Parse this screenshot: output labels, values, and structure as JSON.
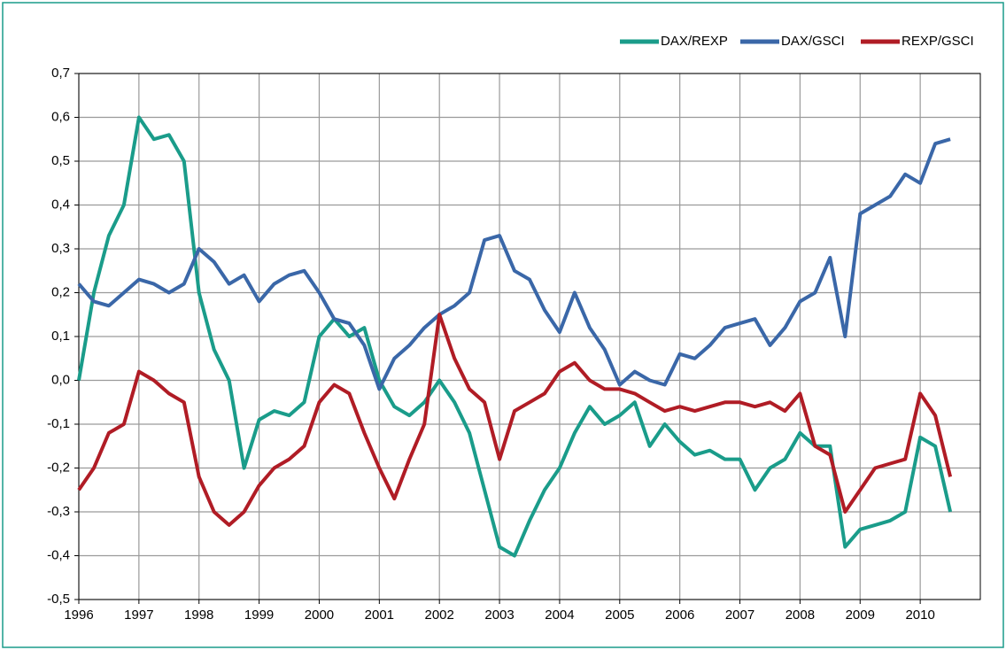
{
  "chart_data": {
    "type": "line",
    "x": [
      1996,
      1996.25,
      1996.5,
      1996.75,
      1997,
      1997.25,
      1997.5,
      1997.75,
      1998,
      1998.25,
      1998.5,
      1998.75,
      1999,
      1999.25,
      1999.5,
      1999.75,
      2000,
      2000.25,
      2000.5,
      2000.75,
      2001,
      2001.25,
      2001.5,
      2001.75,
      2002,
      2002.25,
      2002.5,
      2002.75,
      2003,
      2003.25,
      2003.5,
      2003.75,
      2004,
      2004.25,
      2004.5,
      2004.75,
      2005,
      2005.25,
      2005.5,
      2005.75,
      2006,
      2006.25,
      2006.5,
      2006.75,
      2007,
      2007.25,
      2007.5,
      2007.75,
      2008,
      2008.25,
      2008.5,
      2008.75,
      2009,
      2009.25,
      2009.5,
      2009.75,
      2010,
      2010.25,
      2010.5
    ],
    "series": [
      {
        "name": "DAX/REXP",
        "color": "#1a9c8a",
        "values": [
          0.0,
          0.2,
          0.33,
          0.4,
          0.6,
          0.55,
          0.56,
          0.5,
          0.2,
          0.07,
          0.0,
          -0.2,
          -0.09,
          -0.07,
          -0.08,
          -0.05,
          0.1,
          0.14,
          0.1,
          0.12,
          0.0,
          -0.06,
          -0.08,
          -0.05,
          0.0,
          -0.05,
          -0.12,
          -0.25,
          -0.38,
          -0.4,
          -0.32,
          -0.25,
          -0.2,
          -0.12,
          -0.06,
          -0.1,
          -0.08,
          -0.05,
          -0.15,
          -0.1,
          -0.14,
          -0.17,
          -0.16,
          -0.18,
          -0.18,
          -0.25,
          -0.2,
          -0.18,
          -0.12,
          -0.15,
          -0.15,
          -0.38,
          -0.34,
          -0.33,
          -0.32,
          -0.3,
          -0.13,
          -0.15,
          -0.3
        ]
      },
      {
        "name": "DAX/GSCI",
        "color": "#3a67a8",
        "values": [
          0.22,
          0.18,
          0.17,
          0.2,
          0.23,
          0.22,
          0.2,
          0.22,
          0.3,
          0.27,
          0.22,
          0.24,
          0.18,
          0.22,
          0.24,
          0.25,
          0.2,
          0.14,
          0.13,
          0.08,
          -0.02,
          0.05,
          0.08,
          0.12,
          0.15,
          0.17,
          0.2,
          0.32,
          0.33,
          0.25,
          0.23,
          0.16,
          0.11,
          0.2,
          0.12,
          0.07,
          -0.01,
          0.02,
          0.0,
          -0.01,
          0.06,
          0.05,
          0.08,
          0.12,
          0.13,
          0.14,
          0.08,
          0.12,
          0.18,
          0.2,
          0.28,
          0.1,
          0.38,
          0.4,
          0.42,
          0.47,
          0.45,
          0.54,
          0.55
        ]
      },
      {
        "name": "REXP/GSCI",
        "color": "#b01c25",
        "values": [
          -0.25,
          -0.2,
          -0.12,
          -0.1,
          0.02,
          0.0,
          -0.03,
          -0.05,
          -0.22,
          -0.3,
          -0.33,
          -0.3,
          -0.24,
          -0.2,
          -0.18,
          -0.15,
          -0.05,
          -0.01,
          -0.03,
          -0.12,
          -0.2,
          -0.27,
          -0.18,
          -0.1,
          0.15,
          0.05,
          -0.02,
          -0.05,
          -0.18,
          -0.07,
          -0.05,
          -0.03,
          0.02,
          0.04,
          0.0,
          -0.02,
          -0.02,
          -0.03,
          -0.05,
          -0.07,
          -0.06,
          -0.07,
          -0.06,
          -0.05,
          -0.05,
          -0.06,
          -0.05,
          -0.07,
          -0.03,
          -0.15,
          -0.17,
          -0.3,
          -0.25,
          -0.2,
          -0.19,
          -0.18,
          -0.03,
          -0.08,
          -0.22
        ]
      }
    ],
    "xlim": [
      1996,
      2011
    ],
    "xticks": [
      1996,
      1997,
      1998,
      1999,
      2000,
      2001,
      2002,
      2003,
      2004,
      2005,
      2006,
      2007,
      2008,
      2009,
      2010
    ],
    "ylim": [
      -0.5,
      0.7
    ],
    "yticks": [
      {
        "value": -0.5,
        "label": "-0,5"
      },
      {
        "value": -0.4,
        "label": "-0,4"
      },
      {
        "value": -0.3,
        "label": "-0,3"
      },
      {
        "value": -0.2,
        "label": "-0,2"
      },
      {
        "value": -0.1,
        "label": "-0,1"
      },
      {
        "value": 0.0,
        "label": "0,0"
      },
      {
        "value": 0.1,
        "label": "0,1"
      },
      {
        "value": 0.2,
        "label": "0,2"
      },
      {
        "value": 0.3,
        "label": "0,3"
      },
      {
        "value": 0.4,
        "label": "0,4"
      },
      {
        "value": 0.5,
        "label": "0,5"
      },
      {
        "value": 0.6,
        "label": "0,6"
      },
      {
        "value": 0.7,
        "label": "0,7"
      }
    ],
    "grid": true,
    "legend": "top-right"
  }
}
